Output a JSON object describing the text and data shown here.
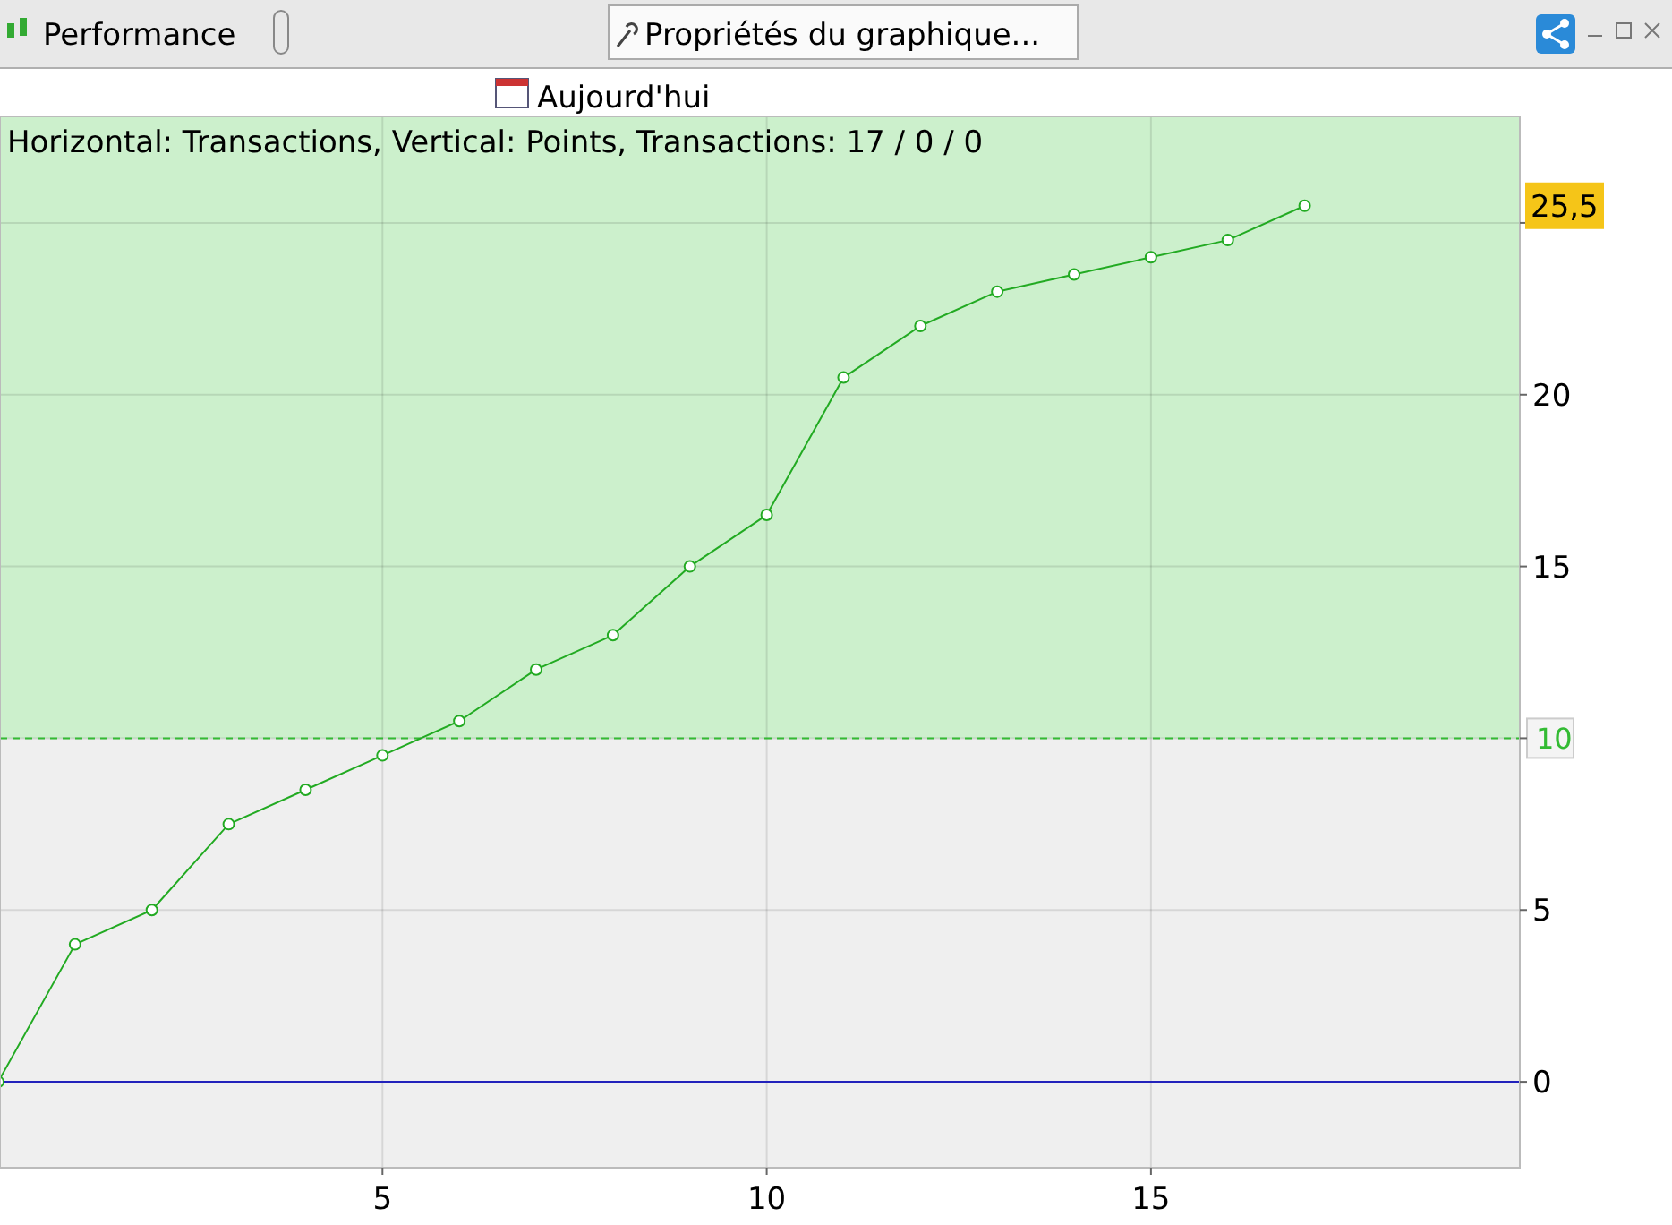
{
  "chart_data": {
    "type": "line",
    "title": "Horizontal: Transactions, Vertical: Points, Transactions: 17 / 0 / 0",
    "x": [
      0,
      1,
      2,
      3,
      4,
      5,
      6,
      7,
      8,
      9,
      10,
      11,
      12,
      13,
      14,
      15,
      16,
      17
    ],
    "series": [
      {
        "color": "#22aa22",
        "values": [
          0,
          4,
          5,
          7.5,
          8.5,
          9.5,
          10.5,
          12,
          13,
          15,
          16.5,
          20.5,
          22,
          23,
          23.5,
          24,
          24.5,
          25.5
        ]
      }
    ],
    "xlim": [
      0,
      19.8
    ],
    "xticks": [
      5,
      10,
      15
    ],
    "ylim": [
      -2.5,
      28.1
    ],
    "yticks": [
      0,
      5,
      {
        "value": 10,
        "label": null
      },
      15,
      20,
      {
        "value": 25,
        "label": null
      }
    ],
    "grid": true,
    "marker": "circle",
    "line_style": "solid",
    "ref_lines": [
      {
        "axis": "y",
        "value": 10,
        "label": "10",
        "color": "#33bb33",
        "line_style": "dashed"
      },
      {
        "axis": "y",
        "value": 0,
        "color": "#2222bb",
        "line_style": "solid"
      }
    ],
    "bands": [
      {
        "axis": "y",
        "from": 10,
        "to": 28.1,
        "color": "#ccf0cc"
      }
    ],
    "annotations": [
      "Performance",
      "Propriétés du graphique...",
      "Aujourd'hui",
      "25,5"
    ]
  }
}
